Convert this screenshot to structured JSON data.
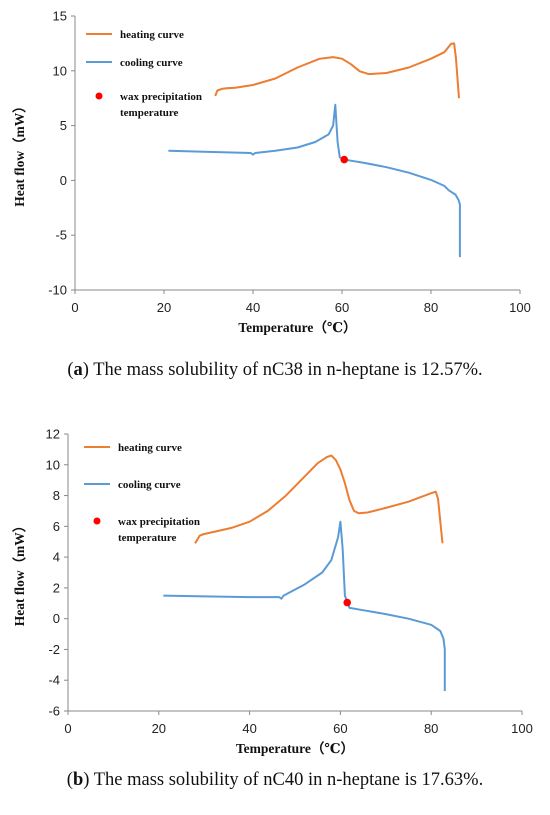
{
  "chart_data": [
    {
      "type": "line",
      "xlabel": "Temperature（℃）",
      "ylabel": "Heat flow（mW）",
      "xlim": [
        0,
        100
      ],
      "ylim": [
        -10,
        15
      ],
      "xticks": [
        0,
        20,
        40,
        60,
        80,
        100
      ],
      "yticks": [
        -10,
        -5,
        0,
        5,
        10,
        15
      ],
      "grid": false,
      "legend_position": "top-left",
      "caption_label": "a",
      "caption_text": " The mass solubility of nC38 in n-heptane is 12.57%.",
      "series": [
        {
          "name": "heating curve",
          "color": "#ED7D31",
          "x": [
            31.5,
            32,
            33,
            34,
            36,
            40,
            45,
            50,
            55,
            58,
            60,
            62,
            64,
            66,
            70,
            75,
            80,
            83,
            84.5,
            85.2,
            85.6,
            86.3
          ],
          "y": [
            7.7,
            8.2,
            8.35,
            8.4,
            8.45,
            8.7,
            9.3,
            10.3,
            11.1,
            11.25,
            11.1,
            10.6,
            9.95,
            9.7,
            9.8,
            10.3,
            11.1,
            11.7,
            12.45,
            12.5,
            11.2,
            7.5
          ]
        },
        {
          "name": "cooling curve",
          "color": "#5B9BD5",
          "x": [
            21,
            30,
            39.5,
            40,
            40.5,
            45,
            50,
            54,
            57,
            58,
            58.5,
            59,
            59.5,
            60.5,
            62,
            65,
            70,
            75,
            80,
            83,
            84,
            85.5,
            86.2,
            86.5,
            86.5
          ],
          "y": [
            2.7,
            2.6,
            2.5,
            2.35,
            2.5,
            2.7,
            3.0,
            3.5,
            4.2,
            5.0,
            6.9,
            3.5,
            2.1,
            1.9,
            1.8,
            1.6,
            1.2,
            0.7,
            0.05,
            -0.5,
            -0.9,
            -1.3,
            -1.8,
            -2.2,
            -7.0
          ]
        },
        {
          "name": "wax precipitation temperature",
          "color": "#FF0000",
          "type": "scatter",
          "x": [
            60.5
          ],
          "y": [
            1.9
          ]
        }
      ]
    },
    {
      "type": "line",
      "xlabel": "Temperature（℃）",
      "ylabel": "Heat flow（mW）",
      "xlim": [
        0,
        100
      ],
      "ylim": [
        -6,
        12
      ],
      "xticks": [
        0,
        20,
        40,
        60,
        80,
        100
      ],
      "yticks": [
        -6,
        -4,
        -2,
        0,
        2,
        4,
        6,
        8,
        10,
        12
      ],
      "grid": false,
      "legend_position": "top-left",
      "caption_label": "b",
      "caption_text": " The mass solubility of nC40 in n-heptane is 17.63%.",
      "series": [
        {
          "name": "heating curve",
          "color": "#ED7D31",
          "x": [
            28,
            29,
            30,
            33,
            36,
            40,
            44,
            48,
            52,
            55,
            57,
            58,
            59,
            60,
            61,
            62,
            63,
            64,
            66,
            70,
            75,
            80,
            81,
            81.5,
            82.5
          ],
          "y": [
            4.9,
            5.4,
            5.5,
            5.7,
            5.9,
            6.3,
            7.0,
            8.0,
            9.2,
            10.1,
            10.5,
            10.6,
            10.3,
            9.7,
            8.8,
            7.7,
            7.0,
            6.85,
            6.9,
            7.2,
            7.6,
            8.15,
            8.25,
            7.8,
            4.9
          ]
        },
        {
          "name": "cooling curve",
          "color": "#5B9BD5",
          "x": [
            21,
            30,
            40,
            46.5,
            47,
            47.5,
            52,
            56,
            58,
            59.5,
            60,
            60.5,
            61,
            62,
            65,
            70,
            75,
            80,
            82,
            82.7,
            83,
            83
          ],
          "y": [
            1.5,
            1.45,
            1.4,
            1.4,
            1.3,
            1.5,
            2.2,
            3.0,
            3.8,
            5.3,
            6.3,
            4.5,
            1.5,
            0.7,
            0.55,
            0.3,
            0.0,
            -0.4,
            -0.8,
            -1.3,
            -2.0,
            -4.7
          ]
        },
        {
          "name": "wax precipitation temperature",
          "color": "#FF0000",
          "type": "scatter",
          "x": [
            61.5
          ],
          "y": [
            1.05
          ]
        }
      ]
    }
  ]
}
